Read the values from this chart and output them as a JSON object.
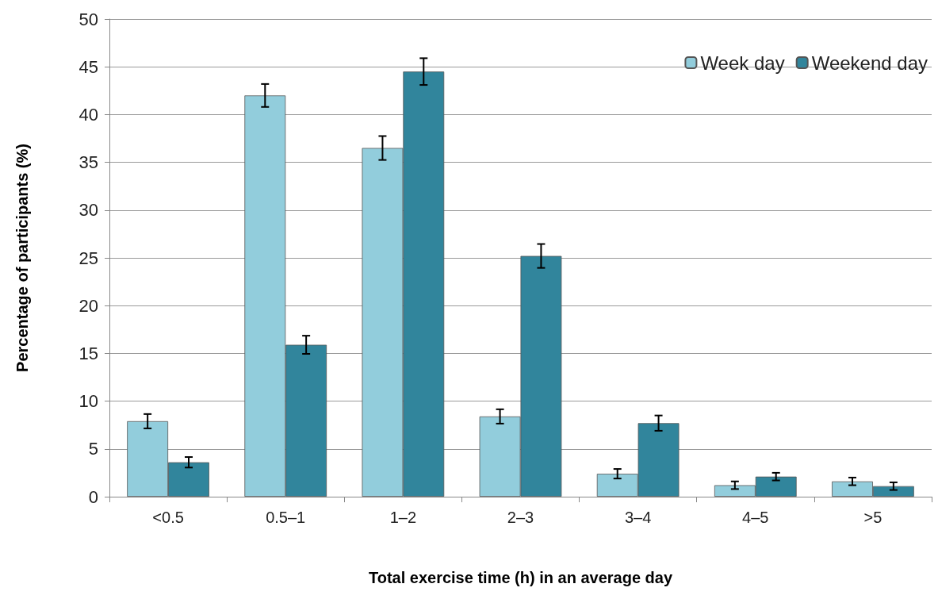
{
  "chart_data": {
    "type": "bar",
    "xlabel": "Total exercise time (h) in an average day",
    "ylabel": "Percentage of participants (%)",
    "categories": [
      "<0.5",
      "0.5–1",
      "1–2",
      "2–3",
      "3–4",
      "4–5",
      ">5"
    ],
    "series": [
      {
        "name": "Week day",
        "color": "#92cddc",
        "values": [
          7.9,
          42.0,
          36.5,
          8.4,
          2.4,
          1.2,
          1.6
        ],
        "errors": [
          0.75,
          1.2,
          1.25,
          0.75,
          0.5,
          0.4,
          0.4
        ]
      },
      {
        "name": "Weekend day",
        "color": "#31859c",
        "values": [
          3.6,
          15.9,
          44.5,
          25.2,
          7.7,
          2.1,
          1.1
        ],
        "errors": [
          0.55,
          0.95,
          1.4,
          1.25,
          0.8,
          0.4,
          0.4
        ]
      }
    ],
    "ylim": [
      0,
      50
    ],
    "yticks": [
      0,
      5,
      10,
      15,
      20,
      25,
      30,
      35,
      40,
      45,
      50
    ],
    "grid": "y",
    "legend": "top right"
  }
}
